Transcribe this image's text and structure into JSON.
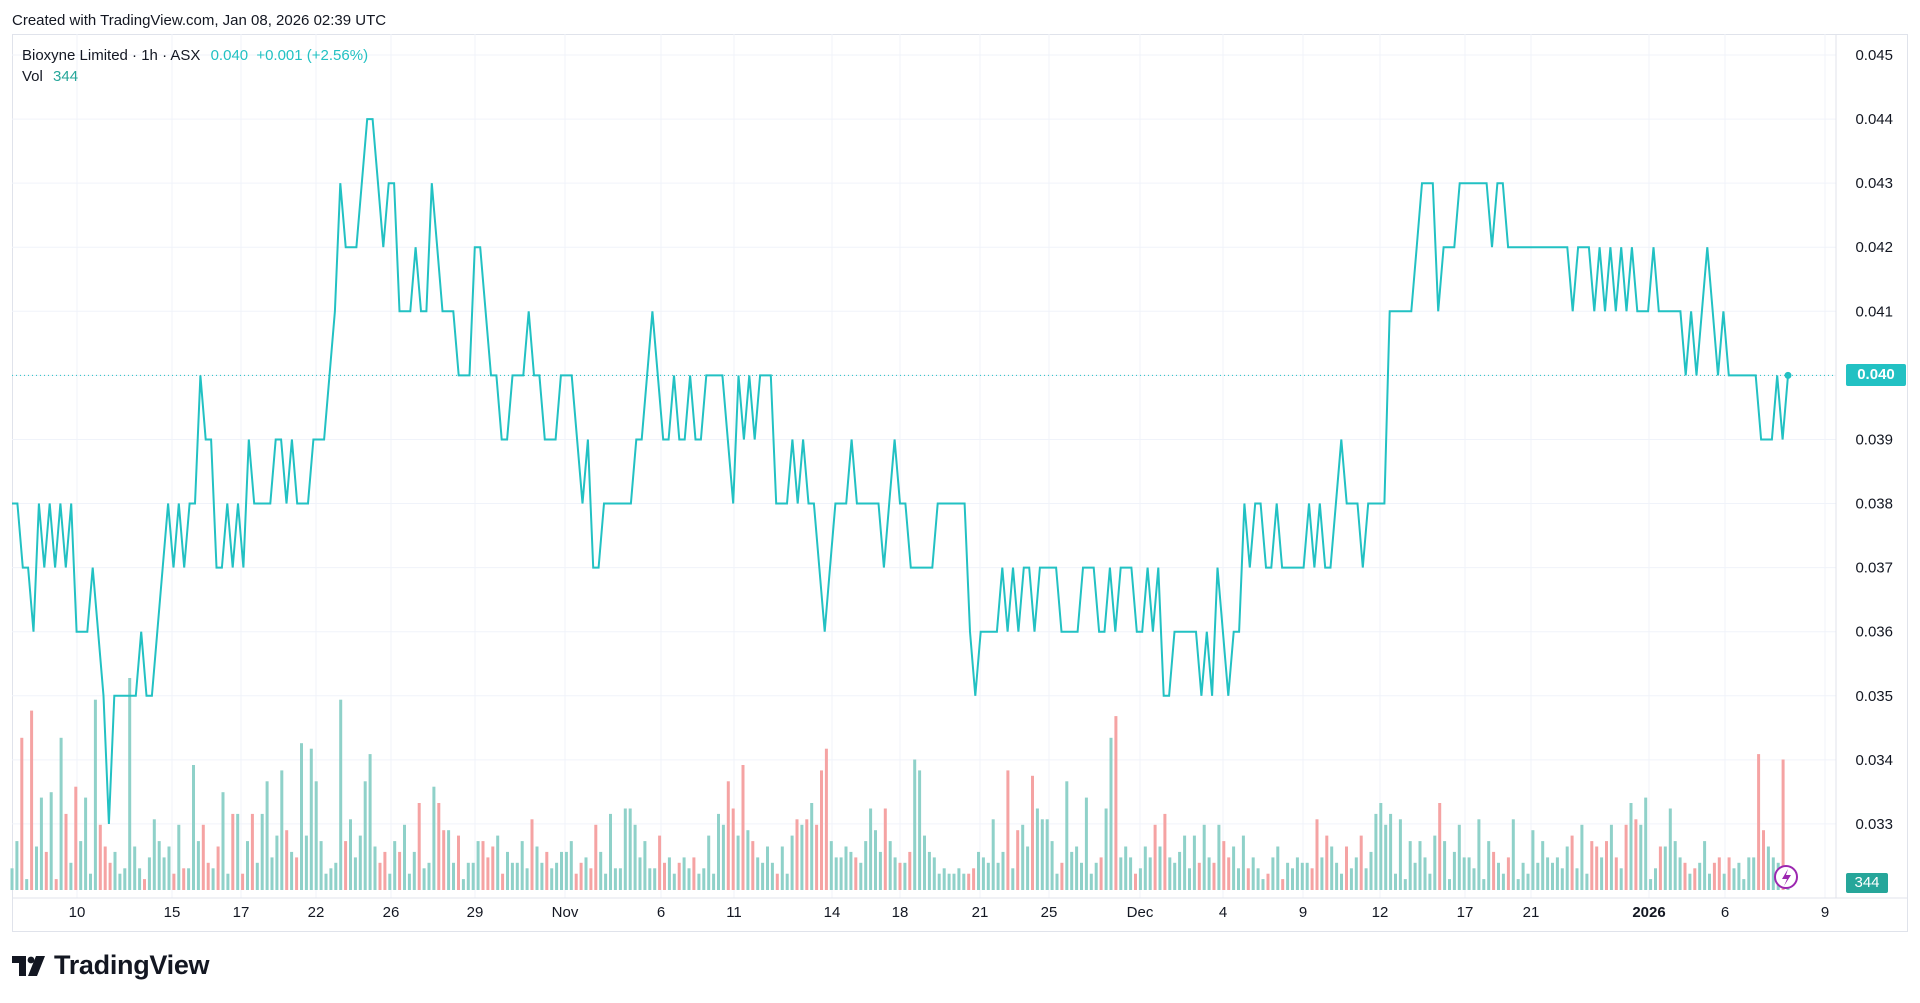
{
  "header": {
    "caption": "Created with TradingView.com, Jan 08, 2026 02:39 UTC"
  },
  "legend": {
    "symbol": "Bioxyne Limited · 1h · ASX",
    "last": "0.040",
    "change": "+0.001 (+2.56%)",
    "vol_label": "Vol",
    "vol_value": "344"
  },
  "brand": {
    "name": "TradingView",
    "logo_icon": "tradingview-logo-icon"
  },
  "price_axis": {
    "current_price_label": "0.040",
    "current_volume_label": "344"
  },
  "colors": {
    "line": "#22c1c3",
    "vol_up": "#8fd1c9",
    "vol_down": "#f5a3a3",
    "grid": "#f0f3fa",
    "accent": "#22c1c3"
  },
  "chart_data": {
    "type": "line",
    "interval": "1h",
    "symbol": "Bioxyne Limited",
    "exchange": "ASX",
    "ylim": [
      0.032,
      0.045
    ],
    "y_ticks": [
      "0.033",
      "0.034",
      "0.035",
      "0.036",
      "0.037",
      "0.038",
      "0.039",
      "0.040",
      "0.041",
      "0.042",
      "0.043",
      "0.044",
      "0.045"
    ],
    "x_ticks": [
      {
        "label": "10",
        "bold": false
      },
      {
        "label": "15",
        "bold": false
      },
      {
        "label": "17",
        "bold": false
      },
      {
        "label": "22",
        "bold": false
      },
      {
        "label": "26",
        "bold": false
      },
      {
        "label": "29",
        "bold": false
      },
      {
        "label": "Nov",
        "bold": false
      },
      {
        "label": "6",
        "bold": false
      },
      {
        "label": "11",
        "bold": false
      },
      {
        "label": "14",
        "bold": false
      },
      {
        "label": "18",
        "bold": false
      },
      {
        "label": "21",
        "bold": false
      },
      {
        "label": "25",
        "bold": false
      },
      {
        "label": "Dec",
        "bold": false
      },
      {
        "label": "4",
        "bold": false
      },
      {
        "label": "9",
        "bold": false
      },
      {
        "label": "12",
        "bold": false
      },
      {
        "label": "17",
        "bold": false
      },
      {
        "label": "21",
        "bold": false
      },
      {
        "label": "2026",
        "bold": true
      },
      {
        "label": "6",
        "bold": false
      },
      {
        "label": "9",
        "bold": false
      }
    ],
    "series": [
      {
        "name": "Bioxyne Limited",
        "values": [
          0.038,
          0.038,
          0.037,
          0.037,
          0.036,
          0.038,
          0.037,
          0.038,
          0.037,
          0.038,
          0.037,
          0.038,
          0.036,
          0.036,
          0.036,
          0.037,
          0.036,
          0.035,
          0.033,
          0.035,
          0.035,
          0.035,
          0.035,
          0.035,
          0.036,
          0.035,
          0.035,
          0.036,
          0.037,
          0.038,
          0.037,
          0.038,
          0.037,
          0.038,
          0.038,
          0.04,
          0.039,
          0.039,
          0.037,
          0.037,
          0.038,
          0.037,
          0.038,
          0.037,
          0.039,
          0.038,
          0.038,
          0.038,
          0.038,
          0.039,
          0.039,
          0.038,
          0.039,
          0.038,
          0.038,
          0.038,
          0.039,
          0.039,
          0.039,
          0.04,
          0.041,
          0.043,
          0.042,
          0.042,
          0.042,
          0.043,
          0.044,
          0.044,
          0.043,
          0.042,
          0.043,
          0.043,
          0.041,
          0.041,
          0.041,
          0.042,
          0.041,
          0.041,
          0.043,
          0.042,
          0.041,
          0.041,
          0.041,
          0.04,
          0.04,
          0.04,
          0.042,
          0.042,
          0.041,
          0.04,
          0.04,
          0.039,
          0.039,
          0.04,
          0.04,
          0.04,
          0.041,
          0.04,
          0.04,
          0.039,
          0.039,
          0.039,
          0.04,
          0.04,
          0.04,
          0.039,
          0.038,
          0.039,
          0.037,
          0.037,
          0.038,
          0.038,
          0.038,
          0.038,
          0.038,
          0.038,
          0.039,
          0.039,
          0.04,
          0.041,
          0.04,
          0.039,
          0.039,
          0.04,
          0.039,
          0.039,
          0.04,
          0.039,
          0.039,
          0.04,
          0.04,
          0.04,
          0.04,
          0.039,
          0.038,
          0.04,
          0.039,
          0.04,
          0.039,
          0.04,
          0.04,
          0.04,
          0.038,
          0.038,
          0.038,
          0.039,
          0.038,
          0.039,
          0.038,
          0.038,
          0.037,
          0.036,
          0.037,
          0.038,
          0.038,
          0.038,
          0.039,
          0.038,
          0.038,
          0.038,
          0.038,
          0.038,
          0.037,
          0.038,
          0.039,
          0.038,
          0.038,
          0.037,
          0.037,
          0.037,
          0.037,
          0.037,
          0.038,
          0.038,
          0.038,
          0.038,
          0.038,
          0.038,
          0.036,
          0.035,
          0.036,
          0.036,
          0.036,
          0.036,
          0.037,
          0.036,
          0.037,
          0.036,
          0.037,
          0.037,
          0.036,
          0.037,
          0.037,
          0.037,
          0.037,
          0.036,
          0.036,
          0.036,
          0.036,
          0.037,
          0.037,
          0.037,
          0.036,
          0.036,
          0.037,
          0.036,
          0.037,
          0.037,
          0.037,
          0.036,
          0.036,
          0.037,
          0.036,
          0.037,
          0.035,
          0.035,
          0.036,
          0.036,
          0.036,
          0.036,
          0.036,
          0.035,
          0.036,
          0.035,
          0.037,
          0.036,
          0.035,
          0.036,
          0.036,
          0.038,
          0.037,
          0.038,
          0.038,
          0.037,
          0.037,
          0.038,
          0.037,
          0.037,
          0.037,
          0.037,
          0.037,
          0.038,
          0.037,
          0.038,
          0.037,
          0.037,
          0.038,
          0.039,
          0.038,
          0.038,
          0.038,
          0.037,
          0.038,
          0.038,
          0.038,
          0.038,
          0.041,
          0.041,
          0.041,
          0.041,
          0.041,
          0.042,
          0.043,
          0.043,
          0.043,
          0.041,
          0.042,
          0.042,
          0.042,
          0.043,
          0.043,
          0.043,
          0.043,
          0.043,
          0.043,
          0.042,
          0.043,
          0.043,
          0.042,
          0.042,
          0.042,
          0.042,
          0.042,
          0.042,
          0.042,
          0.042,
          0.042,
          0.042,
          0.042,
          0.042,
          0.041,
          0.042,
          0.042,
          0.042,
          0.041,
          0.042,
          0.041,
          0.042,
          0.041,
          0.042,
          0.041,
          0.042,
          0.041,
          0.041,
          0.041,
          0.042,
          0.041,
          0.041,
          0.041,
          0.041,
          0.041,
          0.04,
          0.041,
          0.04,
          0.041,
          0.042,
          0.041,
          0.04,
          0.041,
          0.04,
          0.04,
          0.04,
          0.04,
          0.04,
          0.04,
          0.039,
          0.039,
          0.039,
          0.04,
          0.039,
          0.04
        ]
      }
    ],
    "volume": [
      4,
      9,
      28,
      2,
      33,
      8,
      17,
      7,
      18,
      2,
      28,
      14,
      5,
      19,
      9,
      17,
      3,
      35,
      12,
      8,
      5,
      7,
      3,
      4,
      39,
      8,
      4,
      2,
      6,
      13,
      9,
      6,
      8,
      3,
      12,
      4,
      4,
      23,
      9,
      12,
      5,
      4,
      8,
      18,
      3,
      14,
      14,
      3,
      9,
      14,
      5,
      14,
      20,
      6,
      10,
      22,
      11,
      7,
      6,
      27,
      10,
      26,
      20,
      9,
      3,
      4,
      5,
      35,
      9,
      13,
      6,
      10,
      20,
      25,
      8,
      5,
      7,
      3,
      9,
      7,
      12,
      3,
      7,
      16,
      4,
      5,
      19,
      16,
      11,
      11,
      5,
      10,
      2,
      5,
      5,
      9,
      9,
      6,
      8,
      10,
      3,
      7,
      5,
      5,
      9,
      4,
      13,
      8,
      5,
      7,
      4,
      5,
      7,
      7,
      9,
      3,
      5,
      6,
      4,
      12,
      7,
      3,
      14,
      4,
      4,
      15,
      15,
      12,
      6,
      9,
      4,
      4,
      10,
      5,
      6,
      3,
      5,
      6,
      4,
      6,
      3,
      4,
      10,
      3,
      14,
      12,
      20,
      15,
      10,
      23,
      11,
      9,
      6,
      5,
      8,
      5,
      3,
      8,
      3,
      10,
      13,
      12,
      13,
      16,
      12,
      22,
      26,
      9,
      6,
      6,
      8,
      7,
      6,
      5,
      9,
      15,
      11,
      7,
      15,
      9,
      6,
      5,
      5,
      7,
      24,
      22,
      10,
      7,
      6,
      3,
      4,
      3,
      3,
      4,
      3,
      3,
      4,
      7,
      6,
      5,
      13,
      5,
      7,
      22,
      4,
      11,
      12,
      8,
      21,
      15,
      13,
      13,
      9,
      3,
      5,
      20,
      7,
      8,
      5,
      17,
      3,
      5,
      6,
      15,
      28,
      32,
      6,
      8,
      6,
      3,
      4,
      8,
      6,
      12,
      8,
      14,
      6,
      5,
      7,
      10,
      4,
      10,
      5,
      12,
      6,
      5,
      12,
      9,
      6,
      8,
      4,
      10,
      4,
      6,
      4,
      2,
      3,
      6,
      8,
      2,
      5,
      4,
      6,
      5,
      5,
      4,
      13,
      6,
      10,
      8,
      5,
      3,
      8,
      4,
      6,
      10,
      4,
      7,
      14,
      16,
      12,
      14,
      3,
      13,
      2,
      9,
      5,
      9,
      6,
      3,
      10,
      16,
      9,
      2,
      7,
      12,
      6,
      6,
      4,
      13,
      2,
      9,
      7,
      5,
      3,
      6,
      13,
      2,
      5,
      3,
      11,
      5,
      9,
      6,
      5,
      6,
      4,
      8,
      10,
      4,
      12,
      3,
      9,
      8,
      6,
      9,
      12,
      6,
      4,
      12,
      16,
      13,
      12,
      17,
      2,
      4,
      8,
      8,
      15,
      9,
      6,
      5,
      3,
      4,
      5,
      9,
      3,
      5,
      6,
      3,
      6,
      4,
      5,
      2,
      6,
      6,
      25,
      11,
      8,
      6,
      5,
      24,
      1
    ]
  }
}
